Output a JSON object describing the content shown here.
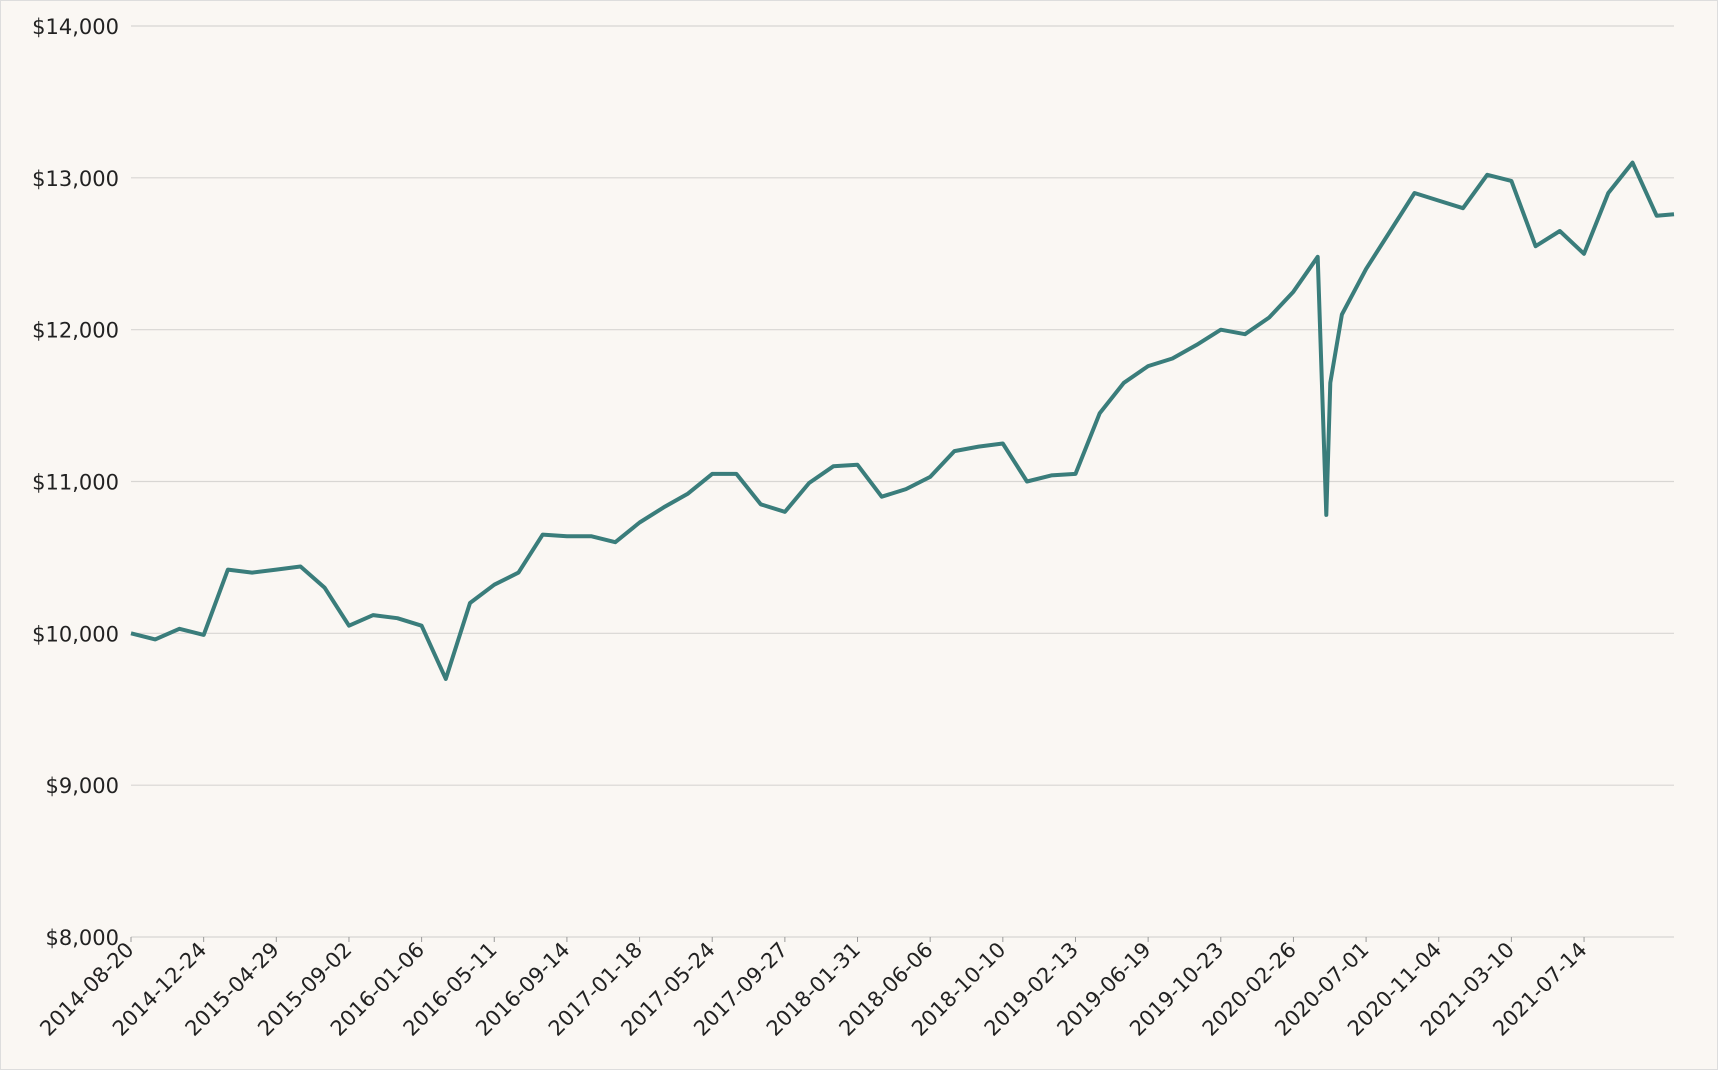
{
  "chart_data": {
    "type": "line",
    "color": "#3a7d7b",
    "grid": true,
    "x": [
      "2014-08-20",
      "2014-10-01",
      "2014-11-12",
      "2014-12-24",
      "2015-02-04",
      "2015-03-18",
      "2015-04-29",
      "2015-06-10",
      "2015-07-22",
      "2015-09-02",
      "2015-10-14",
      "2015-11-25",
      "2016-01-06",
      "2016-02-17",
      "2016-03-30",
      "2016-05-11",
      "2016-06-22",
      "2016-08-03",
      "2016-09-14",
      "2016-10-26",
      "2016-12-07",
      "2017-01-18",
      "2017-03-01",
      "2017-04-12",
      "2017-05-24",
      "2017-07-05",
      "2017-08-16",
      "2017-09-27",
      "2017-11-08",
      "2017-12-20",
      "2018-01-31",
      "2018-03-14",
      "2018-04-25",
      "2018-06-06",
      "2018-07-18",
      "2018-08-29",
      "2018-10-10",
      "2018-11-21",
      "2019-01-02",
      "2019-02-13",
      "2019-03-27",
      "2019-05-08",
      "2019-06-19",
      "2019-07-31",
      "2019-09-11",
      "2019-10-23",
      "2019-12-04",
      "2020-01-15",
      "2020-02-26",
      "2020-04-08",
      "2020-04-23",
      "2020-04-30",
      "2020-05-20",
      "2020-07-01",
      "2020-08-12",
      "2020-09-23",
      "2020-11-04",
      "2020-12-16",
      "2021-01-27",
      "2021-03-10",
      "2021-04-21",
      "2021-06-02",
      "2021-07-14",
      "2021-08-25",
      "2021-10-06",
      "2021-11-17",
      "2021-12-17"
    ],
    "values": [
      10000,
      9960,
      10030,
      9990,
      10420,
      10400,
      10420,
      10440,
      10300,
      10050,
      10120,
      10100,
      10050,
      9700,
      10200,
      10320,
      10400,
      10650,
      10640,
      10640,
      10600,
      10730,
      10830,
      10920,
      11050,
      11050,
      10850,
      10800,
      10990,
      11100,
      11110,
      10900,
      10950,
      11030,
      11200,
      11230,
      11250,
      11000,
      11040,
      11050,
      11450,
      11650,
      11760,
      11810,
      11900,
      12000,
      11970,
      12080,
      12250,
      12480,
      10780,
      11650,
      12100,
      12400,
      12650,
      12900,
      12850,
      12800,
      13020,
      12980,
      12550,
      12650,
      12500,
      12900,
      13100,
      12750,
      12760
    ],
    "xlim": [
      "2014-08-20",
      "2021-12-17"
    ],
    "xticks": [
      "2014-08-20",
      "2014-12-24",
      "2015-04-29",
      "2015-09-02",
      "2016-01-06",
      "2016-05-11",
      "2016-09-14",
      "2017-01-18",
      "2017-05-24",
      "2017-09-27",
      "2018-01-31",
      "2018-06-06",
      "2018-10-10",
      "2019-02-13",
      "2019-06-19",
      "2019-10-23",
      "2020-02-26",
      "2020-07-01",
      "2020-11-04",
      "2021-03-10",
      "2021-07-14"
    ],
    "ylim": [
      8000,
      14000
    ],
    "yticks": [
      {
        "value": 8000,
        "label": "$8,000"
      },
      {
        "value": 9000,
        "label": "$9,000"
      },
      {
        "value": 10000,
        "label": "$10,000"
      },
      {
        "value": 11000,
        "label": "$11,000"
      },
      {
        "value": 12000,
        "label": "$12,000"
      },
      {
        "value": 13000,
        "label": "$13,000"
      },
      {
        "value": 14000,
        "label": "$14,000"
      }
    ]
  }
}
